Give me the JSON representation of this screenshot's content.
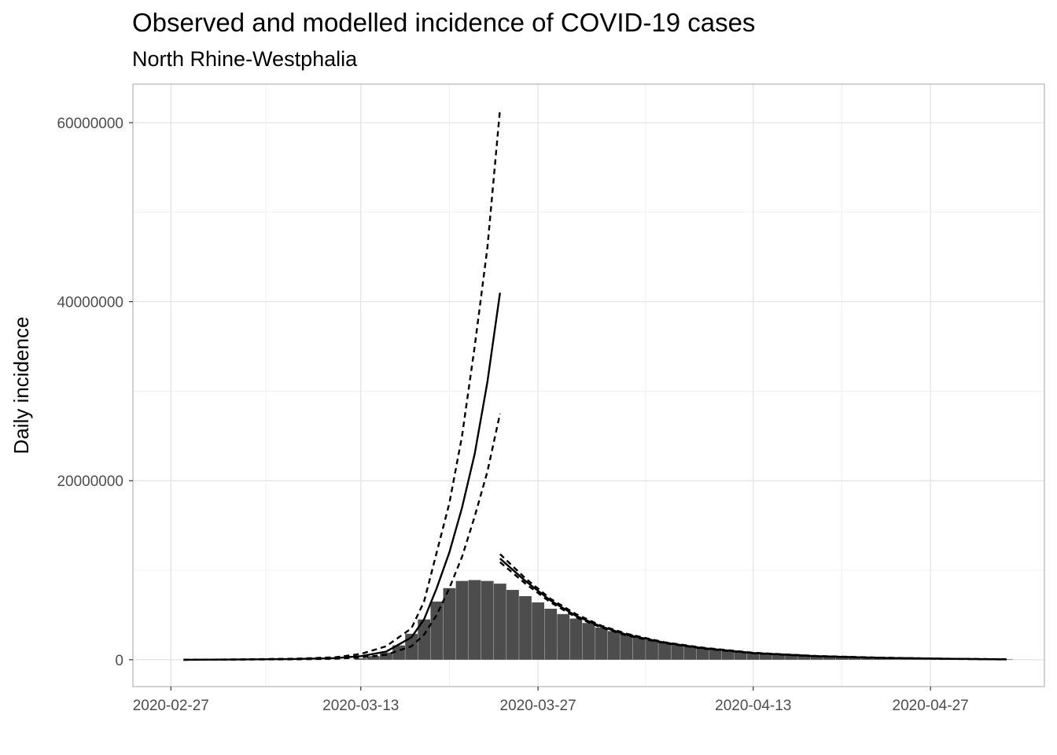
{
  "chart_data": {
    "type": "bar",
    "title": "Observed and modelled incidence of COVID-19 cases",
    "subtitle": "North Rhine-Westphalia",
    "xlabel": "",
    "ylabel": "Daily incidence",
    "x_ticks": [
      "2020-02-27",
      "2020-03-13",
      "2020-03-27",
      "2020-04-13",
      "2020-04-27"
    ],
    "y_ticks": [
      0,
      20000000,
      40000000,
      60000000
    ],
    "y_tick_labels": [
      "0",
      "20000000",
      "40000000",
      "60000000"
    ],
    "xlim": [
      "2020-02-24",
      "2020-05-06"
    ],
    "ylim": [
      -3000000,
      64300000
    ],
    "grid": true,
    "bar_color": "#4d4d4d",
    "line_color": "#000000",
    "observed": {
      "dates": [
        "2020-03-13",
        "2020-03-14",
        "2020-03-15",
        "2020-03-16",
        "2020-03-17",
        "2020-03-18",
        "2020-03-19",
        "2020-03-20",
        "2020-03-21",
        "2020-03-22",
        "2020-03-23",
        "2020-03-24",
        "2020-03-25",
        "2020-03-26",
        "2020-03-27",
        "2020-03-28",
        "2020-03-29",
        "2020-03-30",
        "2020-03-31",
        "2020-04-01",
        "2020-04-02",
        "2020-04-03",
        "2020-04-04",
        "2020-04-05",
        "2020-04-06",
        "2020-04-07",
        "2020-04-08",
        "2020-04-09",
        "2020-04-10",
        "2020-04-11",
        "2020-04-12",
        "2020-04-13",
        "2020-04-14",
        "2020-04-15",
        "2020-04-16",
        "2020-04-17",
        "2020-04-18",
        "2020-04-19",
        "2020-04-20",
        "2020-04-21",
        "2020-04-22",
        "2020-04-23",
        "2020-04-24",
        "2020-04-25",
        "2020-04-26",
        "2020-04-27",
        "2020-04-28",
        "2020-04-29",
        "2020-04-30",
        "2020-05-01",
        "2020-05-02",
        "2020-05-03"
      ],
      "values": [
        150000,
        400000,
        800000,
        1600000,
        2900000,
        4500000,
        6500000,
        8000000,
        8800000,
        8900000,
        8800000,
        8500000,
        7800000,
        7100000,
        6400000,
        5700000,
        5100000,
        4600000,
        4100000,
        3600000,
        3200000,
        2850000,
        2500000,
        2200000,
        1950000,
        1700000,
        1500000,
        1300000,
        1150000,
        1000000,
        880000,
        770000,
        680000,
        600000,
        520000,
        460000,
        400000,
        350000,
        310000,
        270000,
        240000,
        210000,
        185000,
        160000,
        140000,
        120000,
        105000,
        90000,
        78000,
        68000,
        58000,
        50000
      ]
    },
    "series": [
      {
        "role": "central",
        "style": "solid",
        "x": [
          "2020-02-28",
          "2020-03-03",
          "2020-03-08",
          "2020-03-11",
          "2020-03-13",
          "2020-03-15",
          "2020-03-17",
          "2020-03-18",
          "2020-03-19",
          "2020-03-20",
          "2020-03-21",
          "2020-03-22",
          "2020-03-23",
          "2020-03-24"
        ],
        "y": [
          0,
          20000,
          80000,
          180000,
          400000,
          900000,
          2500000,
          4500000,
          8000000,
          12000000,
          17000000,
          23000000,
          31000000,
          41000000
        ]
      },
      {
        "role": "upper",
        "style": "dashed",
        "x": [
          "2020-02-28",
          "2020-03-03",
          "2020-03-08",
          "2020-03-11",
          "2020-03-13",
          "2020-03-15",
          "2020-03-17",
          "2020-03-18",
          "2020-03-19",
          "2020-03-20",
          "2020-03-21",
          "2020-03-22",
          "2020-03-23",
          "2020-03-24"
        ],
        "y": [
          0,
          30000,
          120000,
          280000,
          650000,
          1500000,
          3500000,
          6500000,
          12000000,
          17500000,
          25000000,
          35000000,
          46000000,
          61500000
        ]
      },
      {
        "role": "lower",
        "style": "dashed",
        "x": [
          "2020-02-28",
          "2020-03-03",
          "2020-03-08",
          "2020-03-11",
          "2020-03-13",
          "2020-03-15",
          "2020-03-17",
          "2020-03-18",
          "2020-03-19",
          "2020-03-20",
          "2020-03-21",
          "2020-03-22",
          "2020-03-23",
          "2020-03-24"
        ],
        "y": [
          0,
          10000,
          50000,
          110000,
          250000,
          550000,
          1500000,
          2800000,
          5000000,
          8000000,
          11500000,
          16000000,
          21000000,
          27500000
        ]
      },
      {
        "role": "central",
        "style": "solid",
        "x": [
          "2020-03-24",
          "2020-03-26",
          "2020-03-28",
          "2020-03-30",
          "2020-04-01",
          "2020-04-03",
          "2020-04-06",
          "2020-04-09",
          "2020-04-13",
          "2020-04-18",
          "2020-04-23",
          "2020-04-28",
          "2020-05-03"
        ],
        "y": [
          11300000,
          8800000,
          6600000,
          4900000,
          3700000,
          2800000,
          1900000,
          1300000,
          750000,
          400000,
          220000,
          110000,
          40000
        ]
      },
      {
        "role": "upper",
        "style": "dashed",
        "x": [
          "2020-03-24",
          "2020-03-26",
          "2020-03-28",
          "2020-03-30",
          "2020-04-01",
          "2020-04-03",
          "2020-04-06",
          "2020-04-09",
          "2020-04-13",
          "2020-04-18",
          "2020-04-23",
          "2020-04-28",
          "2020-05-03"
        ],
        "y": [
          11800000,
          9100000,
          6800000,
          5100000,
          3800000,
          2900000,
          1950000,
          1350000,
          780000,
          420000,
          230000,
          115000,
          45000
        ]
      },
      {
        "role": "lower",
        "style": "dashed",
        "x": [
          "2020-03-24",
          "2020-03-26",
          "2020-03-28",
          "2020-03-30",
          "2020-04-01",
          "2020-04-03",
          "2020-04-06",
          "2020-04-09",
          "2020-04-13",
          "2020-04-18",
          "2020-04-23",
          "2020-04-28",
          "2020-05-03"
        ],
        "y": [
          10900000,
          8500000,
          6400000,
          4750000,
          3600000,
          2700000,
          1850000,
          1250000,
          720000,
          380000,
          210000,
          105000,
          35000
        ]
      }
    ]
  }
}
